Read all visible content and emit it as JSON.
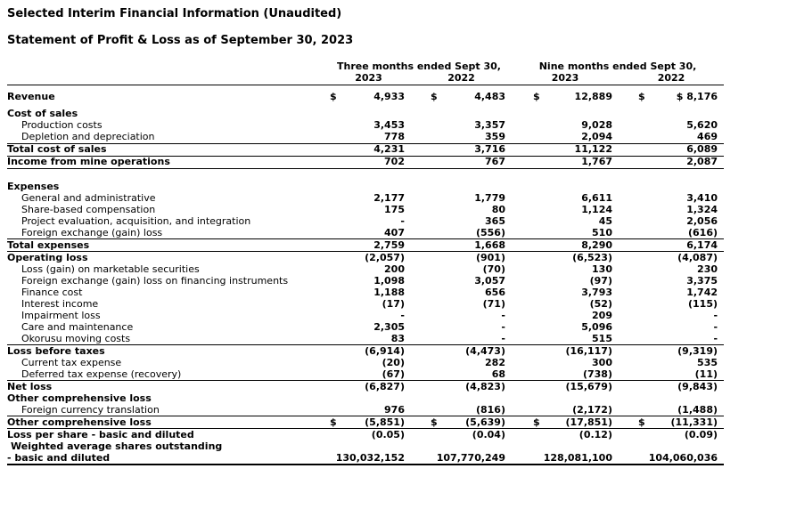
{
  "page": {
    "title1": "Selected Interim Financial Information (Unaudited)",
    "title2": "Statement of Profit & Loss as of September 30, 2023"
  },
  "table": {
    "currency_symbol": "$",
    "groups": [
      {
        "label": "Three months ended Sept 30,",
        "years": [
          "2023",
          "2022"
        ]
      },
      {
        "label": "Nine months ended Sept 30,",
        "years": [
          "2023",
          "2022"
        ]
      }
    ],
    "rows": [
      {
        "label": "Revenue",
        "bold": true,
        "indent": 0,
        "dollar": true,
        "values": [
          "4,933",
          "4,483",
          "12,889",
          "$ 8,176"
        ],
        "border": "none",
        "padtop": true
      },
      {
        "spacer": "sm"
      },
      {
        "label": "Cost of sales",
        "bold": true,
        "indent": 0,
        "values": null,
        "border": "none"
      },
      {
        "label": "Production costs",
        "bold": false,
        "indent": 16,
        "values": [
          "3,453",
          "3,357",
          "9,028",
          "5,620"
        ],
        "border": "none"
      },
      {
        "label": "Depletion and depreciation",
        "bold": false,
        "indent": 16,
        "values": [
          "778",
          "359",
          "2,094",
          "469"
        ],
        "border": "bottom"
      },
      {
        "label": "Total cost of sales",
        "bold": true,
        "indent": 0,
        "values": [
          "4,231",
          "3,716",
          "11,122",
          "6,089"
        ],
        "border": "bottom"
      },
      {
        "label": "Income from mine operations",
        "bold": true,
        "indent": 0,
        "values": [
          "702",
          "767",
          "1,767",
          "2,087"
        ],
        "border": "bottom"
      },
      {
        "spacer": "md"
      },
      {
        "label": "Expenses",
        "bold": true,
        "indent": 0,
        "values": null,
        "border": "none"
      },
      {
        "label": "General and administrative",
        "bold": false,
        "indent": 16,
        "values": [
          "2,177",
          "1,779",
          "6,611",
          "3,410"
        ],
        "border": "none"
      },
      {
        "label": "Share-based compensation",
        "bold": false,
        "indent": 16,
        "values": [
          "175",
          "80",
          "1,124",
          "1,324"
        ],
        "border": "none"
      },
      {
        "label": "Project evaluation, acquisition, and integration",
        "bold": false,
        "indent": 16,
        "values": [
          "-",
          "365",
          "45",
          "2,056"
        ],
        "border": "none"
      },
      {
        "label": "Foreign exchange (gain) loss",
        "bold": false,
        "indent": 16,
        "values": [
          "407",
          "(556)",
          "510",
          "(616)"
        ],
        "border": "bottom"
      },
      {
        "label": "Total expenses",
        "bold": true,
        "indent": 0,
        "values": [
          "2,759",
          "1,668",
          "8,290",
          "6,174"
        ],
        "border": "bottom"
      },
      {
        "label": "Operating loss",
        "bold": true,
        "indent": 0,
        "values": [
          "(2,057)",
          "(901)",
          "(6,523)",
          "(4,087)"
        ],
        "border": "none"
      },
      {
        "label": "Loss (gain) on marketable securities",
        "bold": false,
        "indent": 16,
        "values": [
          "200",
          "(70)",
          "130",
          "230"
        ],
        "border": "none"
      },
      {
        "label": "Foreign exchange (gain) loss on financing instruments",
        "bold": false,
        "indent": 16,
        "values": [
          "1,098",
          "3,057",
          "(97)",
          "3,375"
        ],
        "border": "none"
      },
      {
        "label": "Finance cost",
        "bold": false,
        "indent": 16,
        "values": [
          "1,188",
          "656",
          "3,793",
          "1,742"
        ],
        "border": "none"
      },
      {
        "label": "Interest income",
        "bold": false,
        "indent": 16,
        "values": [
          "(17)",
          "(71)",
          "(52)",
          "(115)"
        ],
        "border": "none"
      },
      {
        "label": "Impairment loss",
        "bold": false,
        "indent": 16,
        "values": [
          "-",
          "-",
          "209",
          "-"
        ],
        "border": "none"
      },
      {
        "label": "Care and maintenance",
        "bold": false,
        "indent": 16,
        "values": [
          "2,305",
          "-",
          "5,096",
          "-"
        ],
        "border": "none"
      },
      {
        "label": "Okorusu moving costs",
        "bold": false,
        "indent": 16,
        "values": [
          "83",
          "-",
          "515",
          "-"
        ],
        "border": "bottom"
      },
      {
        "label": "Loss before taxes",
        "bold": true,
        "indent": 0,
        "values": [
          "(6,914)",
          "(4,473)",
          "(16,117)",
          "(9,319)"
        ],
        "border": "none"
      },
      {
        "label": "Current tax expense",
        "bold": false,
        "indent": 16,
        "values": [
          "(20)",
          "282",
          "300",
          "535"
        ],
        "border": "none"
      },
      {
        "label": "Deferred tax expense (recovery)",
        "bold": false,
        "indent": 16,
        "values": [
          "(67)",
          "68",
          "(738)",
          "(11)"
        ],
        "border": "bottom"
      },
      {
        "label": "Net loss",
        "bold": true,
        "indent": 0,
        "values": [
          "(6,827)",
          "(4,823)",
          "(15,679)",
          "(9,843)"
        ],
        "border": "none"
      },
      {
        "label": "Other comprehensive loss",
        "bold": true,
        "indent": 0,
        "values": null,
        "border": "none"
      },
      {
        "label": "Foreign currency translation",
        "bold": false,
        "indent": 16,
        "values": [
          "976",
          "(816)",
          "(2,172)",
          "(1,488)"
        ],
        "border": "bottom"
      },
      {
        "label": "Other comprehensive loss",
        "bold": true,
        "indent": 0,
        "dollar": true,
        "values": [
          "(5,851)",
          "(5,639)",
          "(17,851)",
          "(11,331)"
        ],
        "border": "bottom"
      },
      {
        "label": "Loss per share - basic and diluted",
        "bold": true,
        "indent": 0,
        "values": [
          "(0.05)",
          "(0.04)",
          "(0.12)",
          "(0.09)"
        ],
        "border": "none"
      },
      {
        "label": "Weighted average shares outstanding",
        "bold": true,
        "indent": 4,
        "values": null,
        "border": "none"
      },
      {
        "label": "- basic and diluted",
        "bold": true,
        "indent": 0,
        "values": [
          "130,032,152",
          "107,770,249",
          "128,081,100",
          "104,060,036"
        ],
        "border": "thick"
      }
    ]
  }
}
